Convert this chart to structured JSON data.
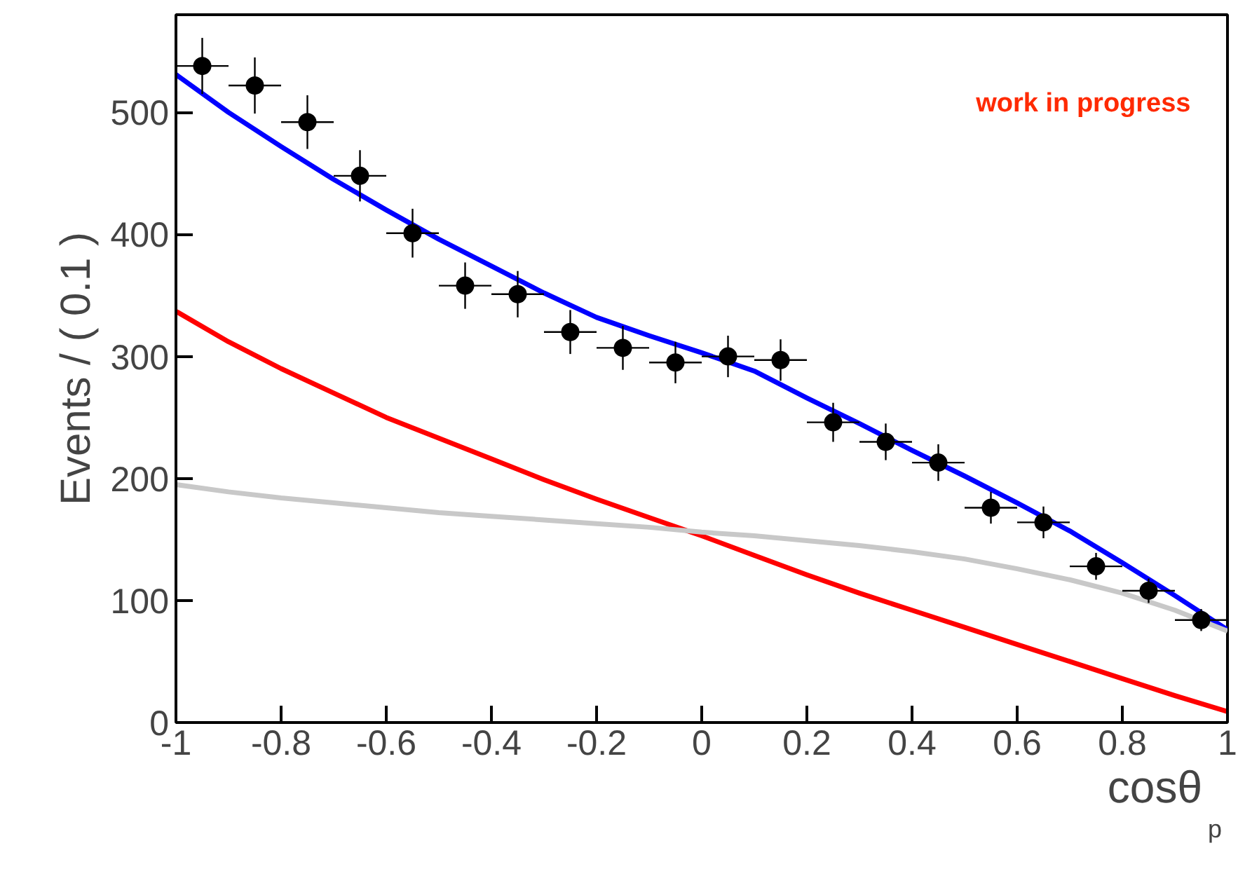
{
  "chart_data": {
    "type": "scatter",
    "xlabel": "cosθ$_{p}$",
    "ylabel": "Events / ( 0.1 )",
    "annotations": [
      "work in progress"
    ],
    "x": [
      -0.95,
      -0.85,
      -0.75,
      -0.65,
      -0.55,
      -0.45,
      -0.35,
      -0.25,
      -0.15,
      -0.05,
      0.05,
      0.15,
      0.25,
      0.35,
      0.45,
      0.55,
      0.65,
      0.75,
      0.85,
      0.95
    ],
    "series": [
      {
        "color": "#000000",
        "marker": "circle",
        "values": [
          538,
          522,
          492,
          448,
          401,
          358,
          351,
          320,
          307,
          295,
          300,
          297,
          246,
          230,
          213,
          176,
          164,
          128,
          108,
          84
        ],
        "errors": [
          23,
          23,
          22,
          21,
          20,
          19,
          19,
          18,
          18,
          17,
          17,
          17,
          16,
          15,
          15,
          13,
          13,
          11,
          10,
          9
        ],
        "xerrors": [
          0.05,
          0.05,
          0.05,
          0.05,
          0.05,
          0.05,
          0.05,
          0.05,
          0.05,
          0.05,
          0.05,
          0.05,
          0.05,
          0.05,
          0.05,
          0.05,
          0.05,
          0.05,
          0.05,
          0.05
        ]
      },
      {
        "type": "line",
        "color": "#0000ff",
        "x": [
          -1,
          -0.9,
          -0.8,
          -0.7,
          -0.6,
          -0.5,
          -0.4,
          -0.3,
          -0.2,
          -0.1,
          0,
          0.1,
          0.2,
          0.3,
          0.4,
          0.5,
          0.6,
          0.7,
          0.8,
          0.9,
          1
        ],
        "values": [
          531,
          500,
          472,
          445,
          420,
          396,
          374,
          352,
          332,
          317,
          303,
          288,
          266,
          245,
          223,
          202,
          180,
          157,
          131,
          104,
          76
        ]
      },
      {
        "type": "line",
        "color": "#ff0000",
        "x": [
          -1,
          -0.9,
          -0.8,
          -0.7,
          -0.6,
          -0.5,
          -0.4,
          -0.3,
          -0.2,
          -0.1,
          0,
          0.1,
          0.2,
          0.3,
          0.4,
          0.5,
          0.6,
          0.7,
          0.8,
          0.9,
          1
        ],
        "values": [
          337,
          312,
          290,
          270,
          250,
          233,
          216,
          199,
          183,
          168,
          153,
          137,
          121,
          106,
          92,
          78,
          64,
          50,
          36,
          22,
          9
        ]
      },
      {
        "type": "line",
        "color": "#c8c8c8",
        "x": [
          -1,
          -0.9,
          -0.8,
          -0.7,
          -0.6,
          -0.5,
          -0.4,
          -0.3,
          -0.2,
          -0.1,
          0,
          0.1,
          0.2,
          0.3,
          0.4,
          0.5,
          0.6,
          0.7,
          0.8,
          0.9,
          1
        ],
        "values": [
          195,
          189,
          184,
          180,
          176,
          172,
          169,
          166,
          163,
          160,
          156,
          153,
          149,
          145,
          140,
          134,
          126,
          117,
          106,
          92,
          75
        ]
      }
    ],
    "grid": false,
    "xlim": [
      -1,
      1
    ],
    "xticks": [
      {
        "value": -1,
        "label": "-1"
      },
      {
        "value": -0.8,
        "label": "-0.8"
      },
      {
        "value": -0.6,
        "label": "-0.6"
      },
      {
        "value": -0.4,
        "label": "-0.4"
      },
      {
        "value": -0.2,
        "label": "-0.2"
      },
      0,
      {
        "value": 0.2,
        "label": "0.2"
      },
      {
        "value": 0.4,
        "label": "0.4"
      },
      {
        "value": 0.6,
        "label": "0.6"
      },
      {
        "value": 0.8,
        "label": "0.8"
      },
      1
    ],
    "ylim": [
      0,
      580
    ],
    "yticks": [
      0,
      100,
      200,
      300,
      400,
      500
    ]
  }
}
